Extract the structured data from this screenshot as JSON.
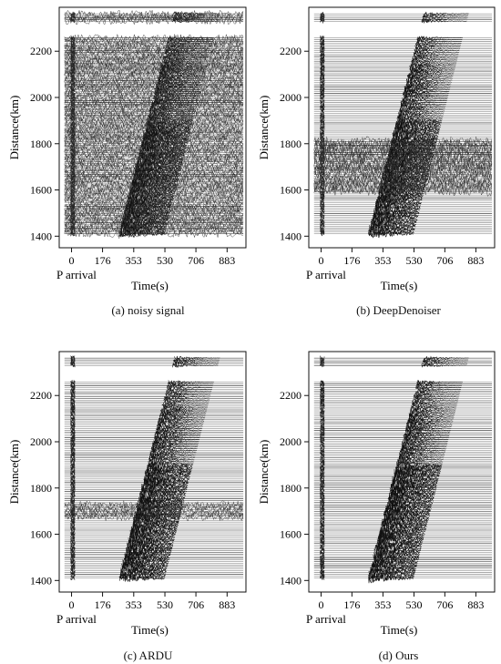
{
  "figure": {
    "panels": [
      {
        "id": "a",
        "caption": "(a)  noisy signal"
      },
      {
        "id": "b",
        "caption": "(b)  DeepDenoiser"
      },
      {
        "id": "c",
        "caption": "(c)  ARDU"
      },
      {
        "id": "d",
        "caption": "(d)  Ours"
      }
    ]
  },
  "chart_data": [
    {
      "type": "heatmap",
      "title": "",
      "caption": "(a)  noisy signal",
      "xlabel": "Time(s)",
      "ylabel": "Distance(km)",
      "x_annotation": "P arrival",
      "x_ticks": [
        0,
        176,
        353,
        530,
        706,
        883
      ],
      "y_ticks": [
        1400,
        1600,
        1800,
        2000,
        2200
      ],
      "xlim": [
        -70,
        990
      ],
      "ylim": [
        1350,
        2390
      ],
      "grid": false,
      "legend": "none",
      "content": "waveform gather: P-arrival moveout from ~270 s at 1410 km to ~560 s at 2300 km; strong broadband noise across all traces"
    },
    {
      "type": "heatmap",
      "title": "",
      "caption": "(b)  DeepDenoiser",
      "xlabel": "Time(s)",
      "ylabel": "Distance(km)",
      "x_annotation": "P arrival",
      "x_ticks": [
        0,
        176,
        353,
        530,
        706,
        883
      ],
      "y_ticks": [
        1400,
        1600,
        1800,
        2000,
        2200
      ],
      "xlim": [
        -70,
        990
      ],
      "ylim": [
        1350,
        2390
      ],
      "grid": false,
      "legend": "none",
      "content": "denoised gather; residual oscillatory noise remains between ~1600 and ~1800 km"
    },
    {
      "type": "heatmap",
      "title": "",
      "caption": "(c)  ARDU",
      "xlabel": "Time(s)",
      "ylabel": "Distance(km)",
      "x_annotation": "P arrival",
      "x_ticks": [
        0,
        176,
        353,
        530,
        706,
        883
      ],
      "y_ticks": [
        1400,
        1600,
        1800,
        2000,
        2200
      ],
      "xlim": [
        -70,
        990
      ],
      "ylim": [
        1350,
        2390
      ],
      "grid": false,
      "legend": "none",
      "content": "denoised gather; weak residual noise on a few traces near ~1700 km"
    },
    {
      "type": "heatmap",
      "title": "",
      "caption": "(d)  Ours",
      "xlabel": "Time(s)",
      "ylabel": "Distance(km)",
      "x_annotation": "P arrival",
      "x_ticks": [
        0,
        176,
        353,
        530,
        706,
        883
      ],
      "y_ticks": [
        1400,
        1600,
        1800,
        2000,
        2200
      ],
      "xlim": [
        -70,
        990
      ],
      "ylim": [
        1350,
        2390
      ],
      "grid": false,
      "legend": "none",
      "content": "clean denoised gather with clear P-arrival moveout"
    }
  ]
}
